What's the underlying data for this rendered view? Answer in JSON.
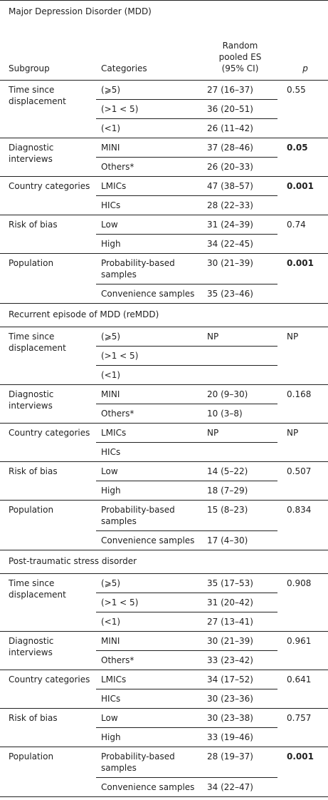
{
  "header": {
    "subgroup": "Subgroup",
    "categories": "Categories",
    "es": "Random pooled ES (95% CI)",
    "p": "p"
  },
  "sections": [
    {
      "title": "Major Depression Disorder (MDD)",
      "groups": [
        {
          "subgroup": "Time since displacement",
          "p": "0.55",
          "bold": false,
          "rows": [
            {
              "category": "(⩾5)",
              "es": "27 (16–37)"
            },
            {
              "category": "(>1 < 5)",
              "es": "36 (20–51)"
            },
            {
              "category": "(<1)",
              "es": "26 (11–42)"
            }
          ]
        },
        {
          "subgroup": "Diagnostic interviews",
          "p": "0.05",
          "bold": true,
          "rows": [
            {
              "category": "MINI",
              "es": "37 (28–46)"
            },
            {
              "category": "Others*",
              "es": "26 (20–33)"
            }
          ]
        },
        {
          "subgroup": "Country categories",
          "p": "0.001",
          "bold": true,
          "rows": [
            {
              "category": "LMICs",
              "es": "47 (38–57)"
            },
            {
              "category": "HICs",
              "es": "28 (22–33)"
            }
          ]
        },
        {
          "subgroup": "Risk of bias",
          "p": "0.74",
          "bold": false,
          "rows": [
            {
              "category": "Low",
              "es": "31 (24–39)"
            },
            {
              "category": "High",
              "es": "34 (22–45)"
            }
          ]
        },
        {
          "subgroup": "Population",
          "p": "0.001",
          "bold": true,
          "rows": [
            {
              "category": "Probability-based samples",
              "es": "30 (21–39)"
            },
            {
              "category": "Convenience samples",
              "es": "35 (23–46)"
            }
          ]
        }
      ]
    },
    {
      "title": "Recurrent episode of MDD (reMDD)",
      "groups": [
        {
          "subgroup": "Time since displacement",
          "p": "NP",
          "bold": false,
          "rows": [
            {
              "category": "(⩾5)",
              "es": "NP"
            },
            {
              "category": "(>1 < 5)",
              "es": null
            },
            {
              "category": "(<1)",
              "es": null
            }
          ]
        },
        {
          "subgroup": "Diagnostic interviews",
          "p": "0.168",
          "bold": false,
          "rows": [
            {
              "category": "MINI",
              "es": "20 (9–30)"
            },
            {
              "category": "Others*",
              "es": "10 (3–8)"
            }
          ]
        },
        {
          "subgroup": "Country categories",
          "p": "NP",
          "bold": false,
          "rows": [
            {
              "category": "LMICs",
              "es": "NP"
            },
            {
              "category": "HICs",
              "es": null
            }
          ]
        },
        {
          "subgroup": "Risk of bias",
          "p": "0.507",
          "bold": false,
          "rows": [
            {
              "category": "Low",
              "es": "14 (5–22)"
            },
            {
              "category": "High",
              "es": "18 (7–29)"
            }
          ]
        },
        {
          "subgroup": "Population",
          "p": "0.834",
          "bold": false,
          "rows": [
            {
              "category": "Probability-based samples",
              "es": "15 (8–23)"
            },
            {
              "category": "Convenience samples",
              "es": "17 (4–30)"
            }
          ]
        }
      ]
    },
    {
      "title": "Post-traumatic stress disorder",
      "groups": [
        {
          "subgroup": "Time since displacement",
          "p": "0.908",
          "bold": false,
          "rows": [
            {
              "category": "(⩾5)",
              "es": "35 (17–53)"
            },
            {
              "category": "(>1 < 5)",
              "es": "31 (20–42)"
            },
            {
              "category": "(<1)",
              "es": "27 (13–41)"
            }
          ]
        },
        {
          "subgroup": "Diagnostic interviews",
          "p": "0.961",
          "bold": false,
          "rows": [
            {
              "category": "MINI",
              "es": "30 (21–39)"
            },
            {
              "category": "Others*",
              "es": "33 (23–42)"
            }
          ]
        },
        {
          "subgroup": "Country categories",
          "p": "0.641",
          "bold": false,
          "rows": [
            {
              "category": "LMICs",
              "es": "34 (17–52)"
            },
            {
              "category": "HICs",
              "es": "30 (23–36)"
            }
          ]
        },
        {
          "subgroup": "Risk of bias",
          "p": "0.757",
          "bold": false,
          "rows": [
            {
              "category": "Low",
              "es": "30 (23–38)"
            },
            {
              "category": "High",
              "es": "33 (19–46)"
            }
          ]
        },
        {
          "subgroup": "Population",
          "p": "0.001",
          "bold": true,
          "rows": [
            {
              "category": "Probability-based samples",
              "es": "28 (19–37)"
            },
            {
              "category": "Convenience samples",
              "es": "34 (22–47)"
            }
          ]
        }
      ]
    }
  ]
}
